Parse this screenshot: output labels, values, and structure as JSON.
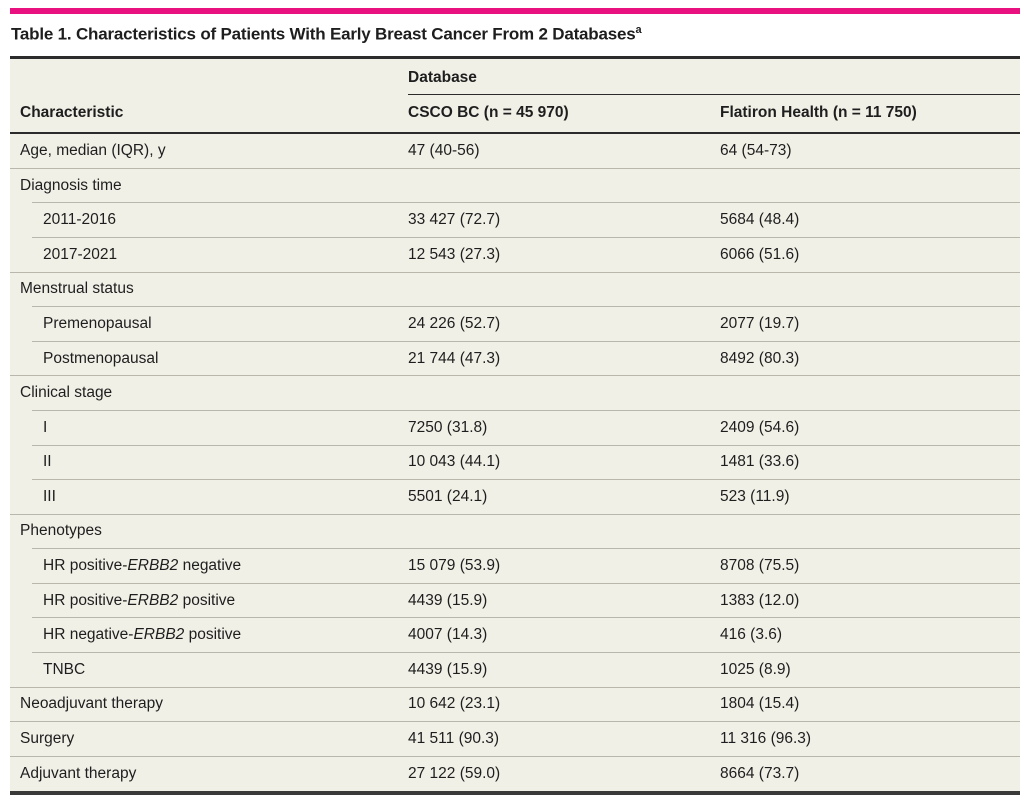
{
  "colors": {
    "accent": "#e8117f",
    "table_background": "#f1f0e7",
    "dark_rule": "#2b2b2b",
    "bottom_rule": "#3a3a3a",
    "row_separator": "#b9b7ab",
    "text": "#1e1e1e"
  },
  "title": {
    "text": "Table 1. Characteristics of Patients With Early Breast Cancer From 2 Databases",
    "superscript": "a"
  },
  "header": {
    "spanner": "Database",
    "characteristic": "Characteristic",
    "col_csco": "CSCO BC (n = 45 970)",
    "col_flatiron": "Flatiron Health (n = 11 750)"
  },
  "rows": [
    {
      "label": "Age, median (IQR), y",
      "type": "data",
      "indent": false,
      "sep": "none",
      "csco": "47 (40-56)",
      "flatiron": "64 (54-73)"
    },
    {
      "label": "Diagnosis time",
      "type": "section",
      "indent": false,
      "sep": "full",
      "csco": "",
      "flatiron": ""
    },
    {
      "label": "2011-2016",
      "type": "data",
      "indent": true,
      "sep": "indent",
      "csco": "33 427 (72.7)",
      "flatiron": "5684 (48.4)"
    },
    {
      "label": "2017-2021",
      "type": "data",
      "indent": true,
      "sep": "indent",
      "csco": "12 543 (27.3)",
      "flatiron": "6066 (51.6)"
    },
    {
      "label": "Menstrual status",
      "type": "section",
      "indent": false,
      "sep": "full",
      "csco": "",
      "flatiron": ""
    },
    {
      "label": "Premenopausal",
      "type": "data",
      "indent": true,
      "sep": "indent",
      "csco": "24 226 (52.7)",
      "flatiron": "2077 (19.7)"
    },
    {
      "label": "Postmenopausal",
      "type": "data",
      "indent": true,
      "sep": "indent",
      "csco": "21 744 (47.3)",
      "flatiron": "8492 (80.3)"
    },
    {
      "label": "Clinical stage",
      "type": "section",
      "indent": false,
      "sep": "full",
      "csco": "",
      "flatiron": ""
    },
    {
      "label": "I",
      "type": "data",
      "indent": true,
      "sep": "indent",
      "csco": "7250 (31.8)",
      "flatiron": "2409 (54.6)"
    },
    {
      "label": "II",
      "type": "data",
      "indent": true,
      "sep": "indent",
      "csco": "10 043 (44.1)",
      "flatiron": "1481 (33.6)"
    },
    {
      "label": "III",
      "type": "data",
      "indent": true,
      "sep": "indent",
      "csco": "5501 (24.1)",
      "flatiron": "523 (11.9)"
    },
    {
      "label": "Phenotypes",
      "type": "section",
      "indent": false,
      "sep": "full",
      "csco": "",
      "flatiron": ""
    },
    {
      "label": "HR positive-ERBB2 negative",
      "label_parts": [
        {
          "t": "HR positive-"
        },
        {
          "t": "ERBB2",
          "italic": true
        },
        {
          "t": " negative"
        }
      ],
      "type": "data",
      "indent": true,
      "sep": "indent",
      "csco": "15 079 (53.9)",
      "flatiron": "8708 (75.5)"
    },
    {
      "label": "HR positive-ERBB2 positive",
      "label_parts": [
        {
          "t": "HR positive-"
        },
        {
          "t": "ERBB2",
          "italic": true
        },
        {
          "t": " positive"
        }
      ],
      "type": "data",
      "indent": true,
      "sep": "indent",
      "csco": "4439 (15.9)",
      "flatiron": "1383 (12.0)"
    },
    {
      "label": "HR negative-ERBB2 positive",
      "label_parts": [
        {
          "t": "HR negative-"
        },
        {
          "t": "ERBB2",
          "italic": true
        },
        {
          "t": " positive"
        }
      ],
      "type": "data",
      "indent": true,
      "sep": "indent",
      "csco": "4007 (14.3)",
      "flatiron": "416 (3.6)"
    },
    {
      "label": "TNBC",
      "type": "data",
      "indent": true,
      "sep": "indent",
      "csco": "4439 (15.9)",
      "flatiron": "1025 (8.9)"
    },
    {
      "label": "Neoadjuvant therapy",
      "type": "data",
      "indent": false,
      "sep": "full",
      "csco": "10 642 (23.1)",
      "flatiron": "1804 (15.4)"
    },
    {
      "label": "Surgery",
      "type": "data",
      "indent": false,
      "sep": "full",
      "csco": "41 511 (90.3)",
      "flatiron": "11 316 (96.3)"
    },
    {
      "label": "Adjuvant therapy",
      "type": "data",
      "indent": false,
      "sep": "full",
      "csco": "27 122 (59.0)",
      "flatiron": "8664 (73.7)"
    }
  ]
}
